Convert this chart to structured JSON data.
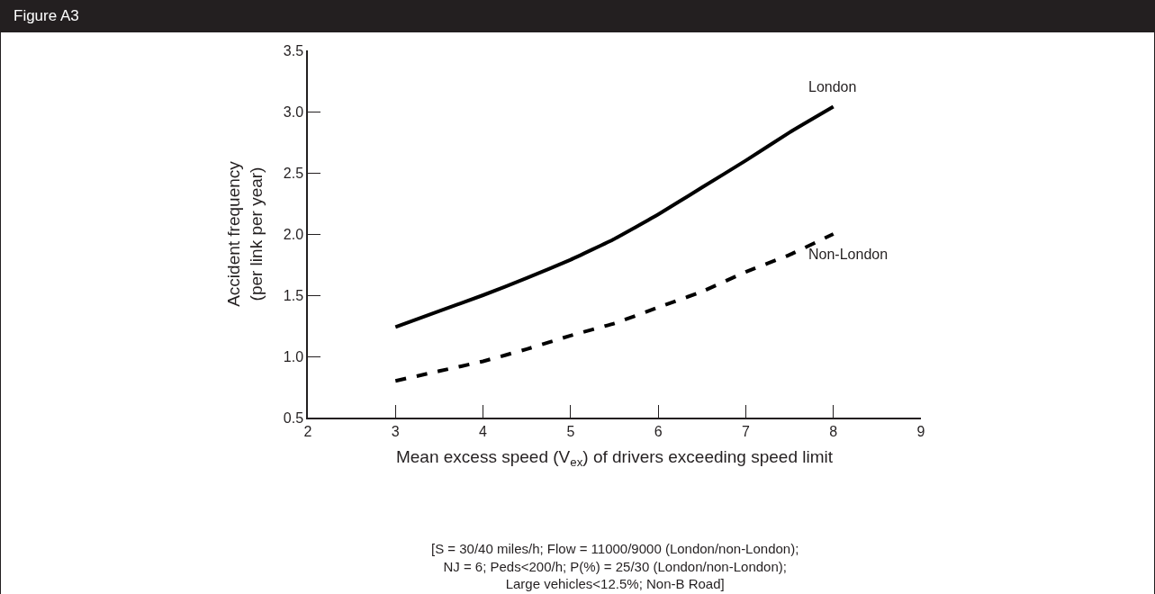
{
  "chart_data": {
    "type": "line",
    "title": "Figure A3",
    "xlabel": "Mean excess speed (V$_{ex}$) of drivers exceeding speed limit",
    "ylabel": "Accident frequency\n(per link per year)",
    "x": [
      3,
      3.5,
      4,
      4.5,
      5,
      5.5,
      6,
      6.5,
      7,
      7.5,
      8
    ],
    "series": [
      {
        "name": "London",
        "color": "#000000",
        "line_style": "solid",
        "values": [
          1.24,
          1.37,
          1.5,
          1.64,
          1.79,
          1.96,
          2.16,
          2.38,
          2.6,
          2.83,
          3.04
        ]
      },
      {
        "name": "Non-London",
        "color": "#000000",
        "line_style": "dashed",
        "values": [
          0.8,
          0.88,
          0.96,
          1.06,
          1.17,
          1.27,
          1.4,
          1.53,
          1.69,
          1.83,
          2.0
        ]
      }
    ],
    "xlim": [
      2,
      9
    ],
    "xticks": [
      2,
      3,
      4,
      5,
      6,
      7,
      8,
      9
    ],
    "ylim": [
      0.5,
      3.5
    ],
    "yticks": [
      {
        "value": 0.5,
        "label": "0.5"
      },
      {
        "value": 1,
        "label": "1.0"
      },
      {
        "value": 1.5,
        "label": "1.5"
      },
      {
        "value": 2,
        "label": "2.0"
      },
      {
        "value": 2.5,
        "label": "2.5"
      },
      {
        "value": 3,
        "label": "3.0"
      },
      {
        "value": 3.5,
        "label": "3.5"
      }
    ],
    "grid": false,
    "legend": false,
    "marker": "none",
    "annotations": [
      "[S = 30/40 miles/h; Flow = 11000/9000 (London/non-London);\nNJ = 6; Peds<200/h; P(%) = 25/30 (London/non-London);\nLarge vehicles<12.5%; Non-B Road]"
    ]
  }
}
